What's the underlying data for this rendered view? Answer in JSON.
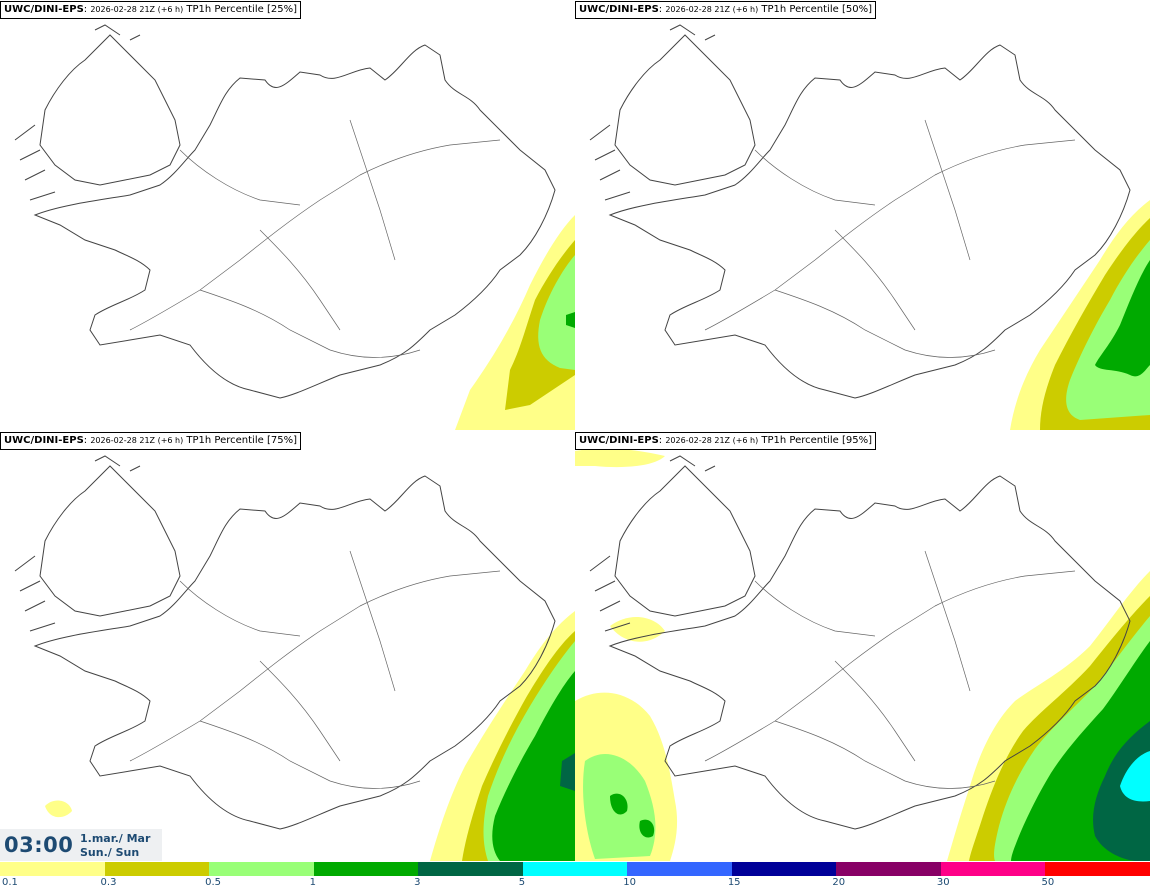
{
  "panels": [
    {
      "source": "UWC/DINI-EPS",
      "run": "2026-02-28 21Z (+6 h)",
      "field": "TP1h Percentile [25%]"
    },
    {
      "source": "UWC/DINI-EPS",
      "run": "2026-02-28 21Z (+6 h)",
      "field": "TP1h Percentile [50%]"
    },
    {
      "source": "UWC/DINI-EPS",
      "run": "2026-02-28 21Z (+6 h)",
      "field": "TP1h Percentile [75%]"
    },
    {
      "source": "UWC/DINI-EPS",
      "run": "2026-02-28 21Z (+6 h)",
      "field": "TP1h Percentile [95%]"
    }
  ],
  "time": {
    "clock": "03:00",
    "date_line1": "1.mar./ Mar",
    "date_line2": "Sun./ Sun"
  },
  "legend": {
    "labels": [
      "0.1",
      "0.3",
      "0.5",
      "1",
      "3",
      "5",
      "10",
      "15",
      "20",
      "30",
      "50"
    ],
    "colors": [
      "#ffff88",
      "#cccc00",
      "#99ff77",
      "#00aa00",
      "#006644",
      "#00ffff",
      "#3366ff",
      "#000099",
      "#880066",
      "#ff0088",
      "#ff0000"
    ]
  }
}
